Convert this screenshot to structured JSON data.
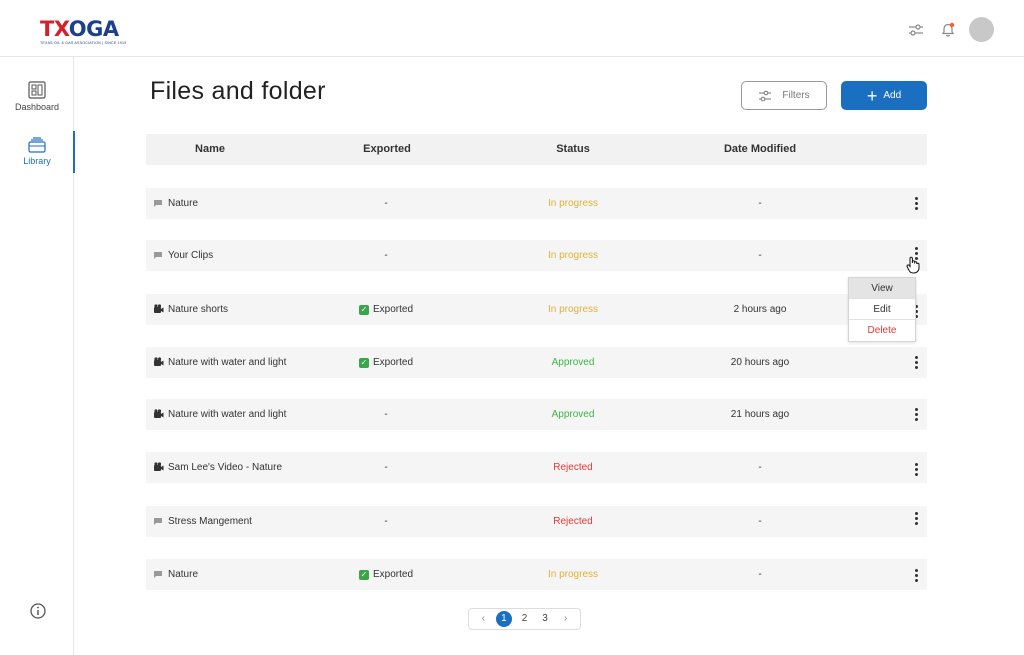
{
  "app": {
    "logo_main_1": "TX",
    "logo_main_2": "OGA",
    "logo_tagline": "TEXAS OIL & GAS ASSOCIATION | SINCE 1919"
  },
  "sidebar": {
    "items": [
      {
        "label": "Dashboard",
        "icon": "dashboard-icon"
      },
      {
        "label": "Library",
        "icon": "library-icon",
        "active": true
      }
    ]
  },
  "header": {
    "title": "Files and folder",
    "filters_label": "Filters",
    "add_label": "Add"
  },
  "table": {
    "columns": [
      "Name",
      "Exported",
      "Status",
      "Date Modified"
    ],
    "rows": [
      {
        "type": "folder",
        "name": "Nature",
        "exported": "-",
        "status": "In progress",
        "date": "-"
      },
      {
        "type": "folder",
        "name": "Your Clips",
        "exported": "-",
        "status": "In progress",
        "date": "-"
      },
      {
        "type": "video",
        "name": "Nature shorts",
        "exported": "Exported",
        "status": "In progress",
        "date": "2 hours ago"
      },
      {
        "type": "video",
        "name": "Nature with water and light",
        "exported": "Exported",
        "status": "Approved",
        "date": "20 hours ago"
      },
      {
        "type": "video",
        "name": "Nature with water and light",
        "exported": "-",
        "status": "Approved",
        "date": "21 hours ago"
      },
      {
        "type": "video",
        "name": "Sam Lee's Video - Nature",
        "exported": "-",
        "status": "Rejected",
        "date": "-"
      },
      {
        "type": "folder",
        "name": "Stress Mangement",
        "exported": "-",
        "status": "Rejected",
        "date": "-"
      },
      {
        "type": "folder",
        "name": "Nature",
        "exported": "Exported",
        "status": "In progress",
        "date": "-"
      }
    ]
  },
  "context_menu": {
    "items": [
      "View",
      "Edit",
      "Delete"
    ]
  },
  "pagination": {
    "pages": [
      "1",
      "2",
      "3"
    ],
    "current": "1"
  },
  "colors": {
    "accent": "#1a6fc1",
    "in_progress": "#e0b23a",
    "approved": "#3db54a",
    "rejected": "#e53935"
  }
}
